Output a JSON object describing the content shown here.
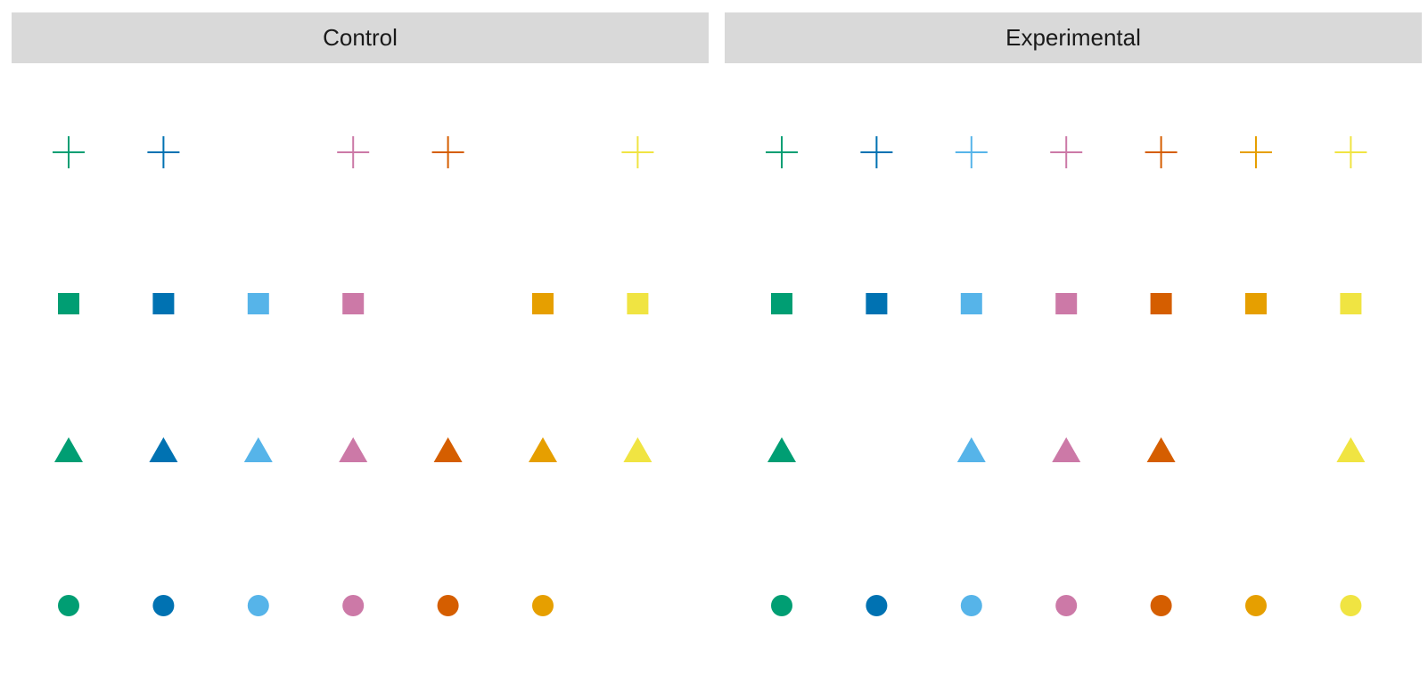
{
  "chart_data": {
    "type": "scatter",
    "facet_by": "group",
    "facets": [
      "Control",
      "Experimental"
    ],
    "x": [
      1,
      2,
      3,
      4,
      5,
      6,
      7
    ],
    "rows": [
      "cross",
      "square",
      "triangle",
      "circle"
    ],
    "colors": [
      "#009E73",
      "#0072B2",
      "#56B4E9",
      "#CC79A7",
      "#D55E00",
      "#E69F00",
      "#F0E442"
    ],
    "xlim": [
      0.5,
      7.5
    ],
    "grid": false,
    "legend": "none",
    "points": {
      "Control": {
        "cross": [
          1,
          2,
          4,
          5,
          7
        ],
        "square": [
          1,
          2,
          3,
          4,
          6,
          7
        ],
        "triangle": [
          1,
          2,
          3,
          4,
          5,
          6,
          7
        ],
        "circle": [
          1,
          2,
          3,
          4,
          5,
          6
        ]
      },
      "Experimental": {
        "cross": [
          1,
          2,
          3,
          4,
          5,
          6,
          7
        ],
        "square": [
          1,
          2,
          3,
          4,
          5,
          6,
          7
        ],
        "triangle": [
          1,
          3,
          4,
          5,
          7
        ],
        "circle": [
          1,
          2,
          3,
          4,
          5,
          6,
          7
        ]
      }
    }
  }
}
